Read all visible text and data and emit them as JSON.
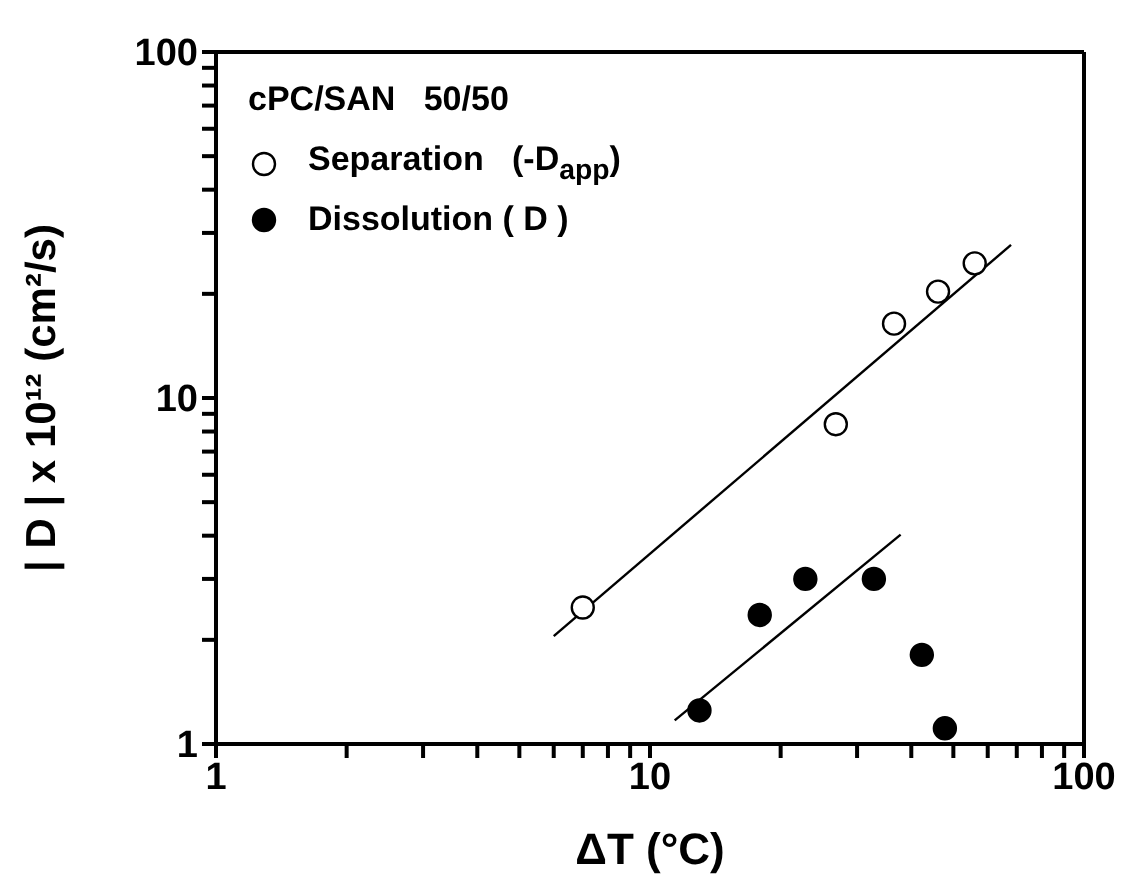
{
  "chart_data": {
    "type": "scatter",
    "xlabel": "ΔT (°C)",
    "ylabel": "| D | x 10¹² (cm²/s)",
    "legend_title": "cPC/SAN   50/50",
    "log": "xy",
    "xlim": [
      1,
      100
    ],
    "ylim": [
      1,
      100
    ],
    "xticks": [
      1,
      {
        "value": 2,
        "label": null
      },
      {
        "value": 3,
        "label": null
      },
      {
        "value": 4,
        "label": null
      },
      {
        "value": 5,
        "label": null
      },
      {
        "value": 6,
        "label": null
      },
      {
        "value": 7,
        "label": null
      },
      {
        "value": 8,
        "label": null
      },
      {
        "value": 9,
        "label": null
      },
      10,
      {
        "value": 20,
        "label": null
      },
      {
        "value": 30,
        "label": null
      },
      {
        "value": 40,
        "label": null
      },
      {
        "value": 50,
        "label": null
      },
      {
        "value": 60,
        "label": null
      },
      {
        "value": 70,
        "label": null
      },
      {
        "value": 80,
        "label": null
      },
      {
        "value": 90,
        "label": null
      },
      100
    ],
    "yticks": [
      1,
      {
        "value": 2,
        "label": null
      },
      {
        "value": 3,
        "label": null
      },
      {
        "value": 4,
        "label": null
      },
      {
        "value": 5,
        "label": null
      },
      {
        "value": 6,
        "label": null
      },
      {
        "value": 7,
        "label": null
      },
      {
        "value": 8,
        "label": null
      },
      {
        "value": 9,
        "label": null
      },
      10,
      {
        "value": 20,
        "label": null
      },
      {
        "value": 30,
        "label": null
      },
      {
        "value": 40,
        "label": null
      },
      {
        "value": 50,
        "label": null
      },
      {
        "value": 60,
        "label": null
      },
      {
        "value": 70,
        "label": null
      },
      {
        "value": 80,
        "label": null
      },
      {
        "value": 90,
        "label": null
      },
      100
    ],
    "grid": false,
    "legend": "top left",
    "marker": "circle",
    "series": [
      {
        "name": "Separation   (-D$_{app}$)",
        "color": "#ffffff",
        "x": [
          7.0,
          26.8,
          36.5,
          46.1,
          56.0
        ],
        "values": [
          2.48,
          8.4,
          16.4,
          20.3,
          24.5
        ]
      },
      {
        "name": "Dissolution ( D )",
        "color": "#000000",
        "x": [
          13.0,
          17.9,
          22.8,
          32.8,
          42.3,
          47.8
        ],
        "values": [
          1.25,
          2.36,
          3.0,
          3.0,
          1.81,
          1.11
        ]
      },
      {
        "type": "line",
        "color": "#000000",
        "line_style": "solid",
        "marker": "none",
        "x": [
          6.0,
          67.9
        ],
        "values": [
          2.05,
          27.7
        ]
      },
      {
        "type": "line",
        "color": "#000000",
        "line_style": "solid",
        "marker": "none",
        "x": [
          11.4,
          37.8
        ],
        "values": [
          1.17,
          4.03
        ]
      }
    ]
  }
}
